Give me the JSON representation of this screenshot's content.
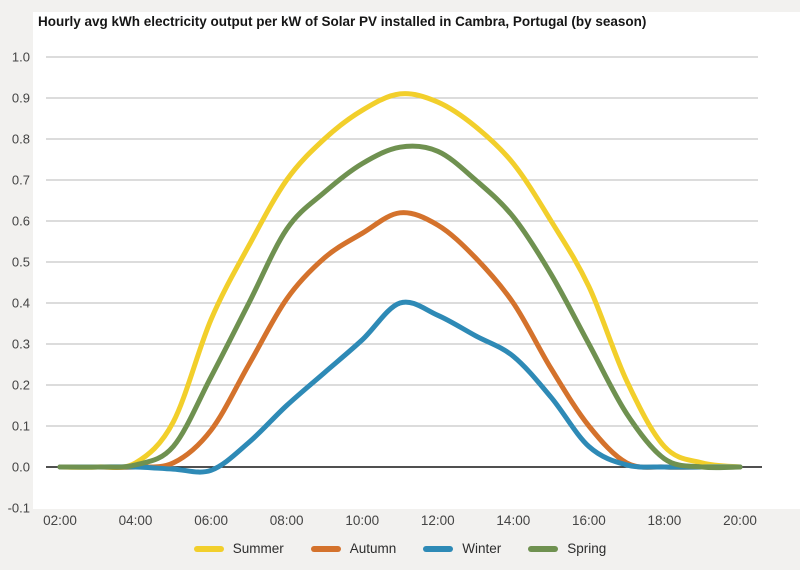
{
  "chart_data": {
    "type": "line",
    "title": "Hourly avg kWh electricity output per kW of Solar PV installed in Cambra, Portugal (by season)",
    "xlabel": "",
    "ylabel": "",
    "ylim": [
      -0.1,
      1.0
    ],
    "grid": "horizontal",
    "legend_position": "bottom",
    "colors": {
      "grid": "#c6c6c6",
      "axis": "#161616",
      "tick_text": "#444444",
      "title_text": "#161616"
    },
    "x_hours": [
      2,
      3,
      4,
      5,
      6,
      7,
      8,
      9,
      10,
      11,
      12,
      13,
      14,
      15,
      16,
      17,
      18,
      19,
      20
    ],
    "x_ticks": [
      {
        "hour": 2,
        "label": "02:00"
      },
      {
        "hour": 4,
        "label": "04:00"
      },
      {
        "hour": 6,
        "label": "06:00"
      },
      {
        "hour": 8,
        "label": "08:00"
      },
      {
        "hour": 10,
        "label": "10:00"
      },
      {
        "hour": 12,
        "label": "12:00"
      },
      {
        "hour": 14,
        "label": "14:00"
      },
      {
        "hour": 16,
        "label": "16:00"
      },
      {
        "hour": 18,
        "label": "18:00"
      },
      {
        "hour": 20,
        "label": "20:00"
      }
    ],
    "y_ticks": [
      {
        "value": 1.0,
        "label": "1.0"
      },
      {
        "value": 0.9,
        "label": "0.9"
      },
      {
        "value": 0.8,
        "label": "0.8"
      },
      {
        "value": 0.7,
        "label": "0.7"
      },
      {
        "value": 0.6,
        "label": "0.6"
      },
      {
        "value": 0.5,
        "label": "0.5"
      },
      {
        "value": 0.4,
        "label": "0.4"
      },
      {
        "value": 0.3,
        "label": "0.3"
      },
      {
        "value": 0.2,
        "label": "0.2"
      },
      {
        "value": 0.1,
        "label": "0.1"
      },
      {
        "value": 0.0,
        "label": "0.0"
      },
      {
        "value": -0.1,
        "label": "-0.1"
      }
    ],
    "series": [
      {
        "name": "Summer",
        "color": "#f2cf2b",
        "values": [
          0,
          0,
          0.01,
          0.11,
          0.36,
          0.54,
          0.7,
          0.8,
          0.87,
          0.91,
          0.89,
          0.83,
          0.74,
          0.6,
          0.44,
          0.21,
          0.05,
          0.01,
          0
        ]
      },
      {
        "name": "Autumn",
        "color": "#d4722c",
        "values": [
          0,
          0,
          0,
          0.01,
          0.09,
          0.25,
          0.41,
          0.51,
          0.57,
          0.62,
          0.59,
          0.51,
          0.4,
          0.24,
          0.1,
          0.01,
          0,
          0,
          0
        ]
      },
      {
        "name": "Winter",
        "color": "#2e8ab6",
        "values": [
          0,
          0,
          0,
          -0.005,
          -0.008,
          0.06,
          0.15,
          0.23,
          0.31,
          0.4,
          0.37,
          0.32,
          0.27,
          0.17,
          0.05,
          0.005,
          0,
          0,
          0
        ]
      },
      {
        "name": "Spring",
        "color": "#6f9150",
        "values": [
          0,
          0,
          0.005,
          0.05,
          0.22,
          0.4,
          0.58,
          0.67,
          0.74,
          0.78,
          0.77,
          0.7,
          0.61,
          0.47,
          0.3,
          0.13,
          0.02,
          0,
          0
        ]
      }
    ]
  }
}
